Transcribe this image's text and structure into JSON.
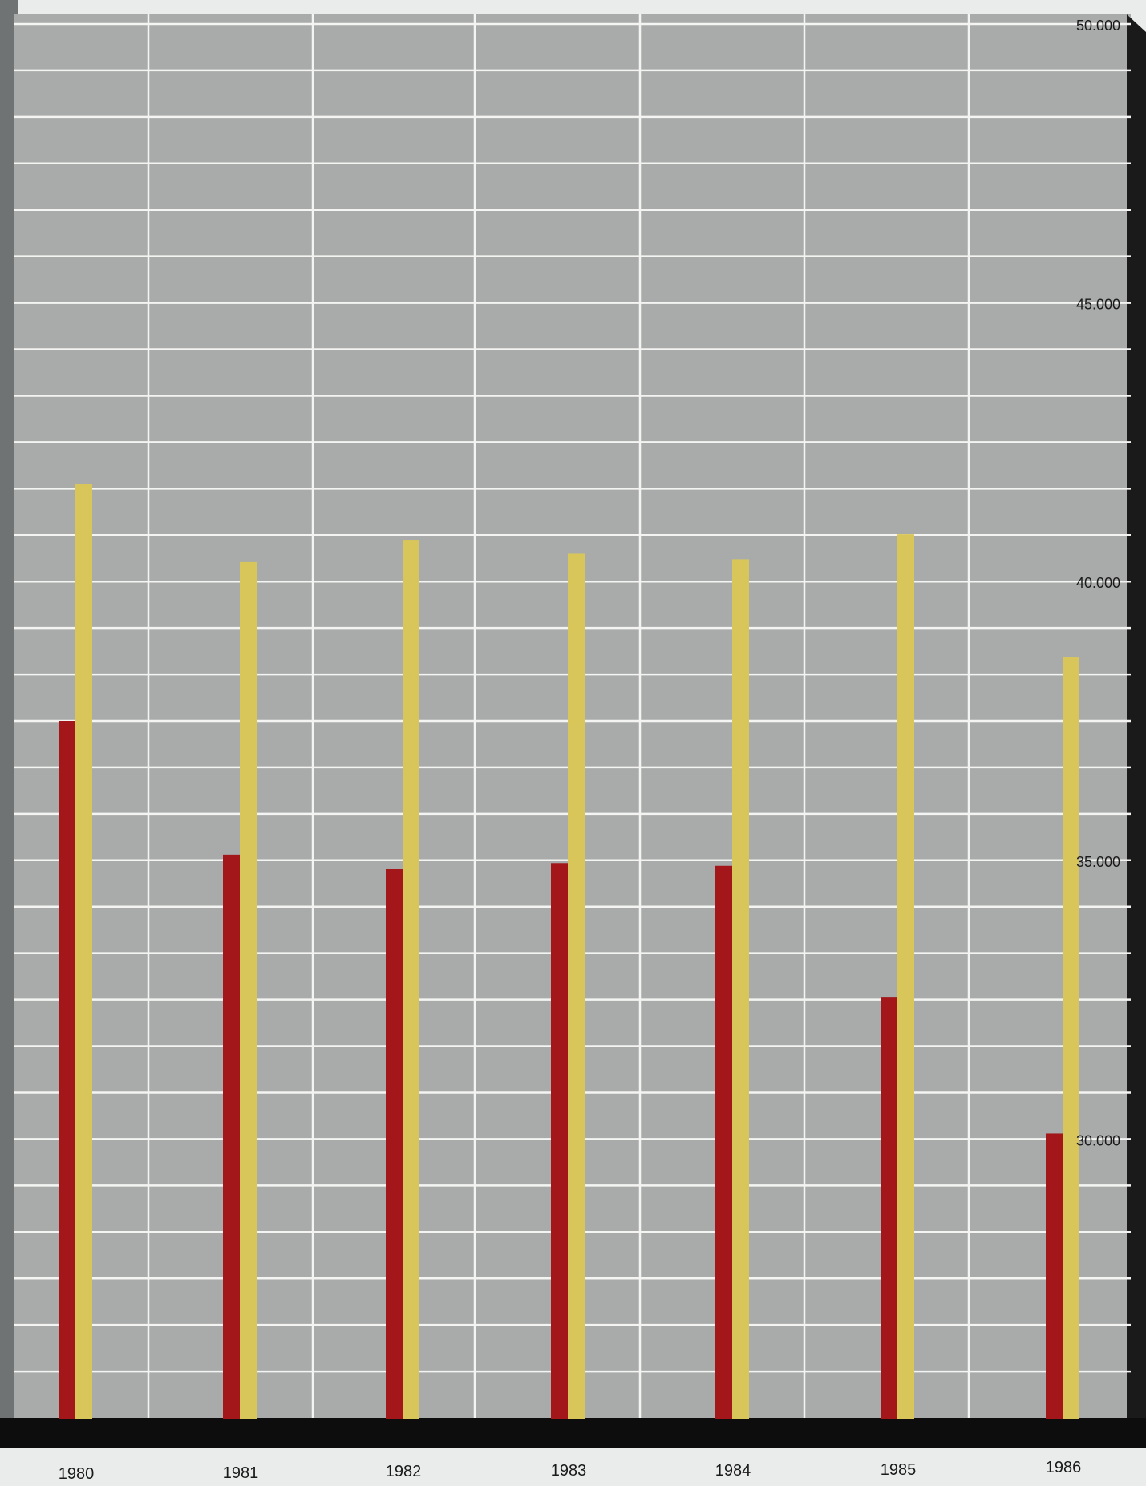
{
  "chart_data": {
    "type": "bar",
    "categories": [
      "1980",
      "1981",
      "1982",
      "1983",
      "1984",
      "1985",
      "1986"
    ],
    "series": [
      {
        "values": [
          37500,
          35100,
          34850,
          34950,
          34900,
          32550,
          30100
        ],
        "color": "#a3171b"
      },
      {
        "values": [
          41750,
          40350,
          40750,
          40500,
          40400,
          40850,
          38650
        ],
        "color": "#d8c65a"
      }
    ],
    "y_ticks": [
      "50.000",
      "45.000",
      "40.000",
      "35.000",
      "30.000"
    ],
    "ylim": [
      25000,
      50000
    ],
    "grid": true,
    "y_axis_side": "right",
    "colors": {
      "plot_background": "#a8abaa",
      "grid": "#f4f5f2",
      "baseline": "#0d0d0d",
      "page": "#e9ecea"
    }
  }
}
